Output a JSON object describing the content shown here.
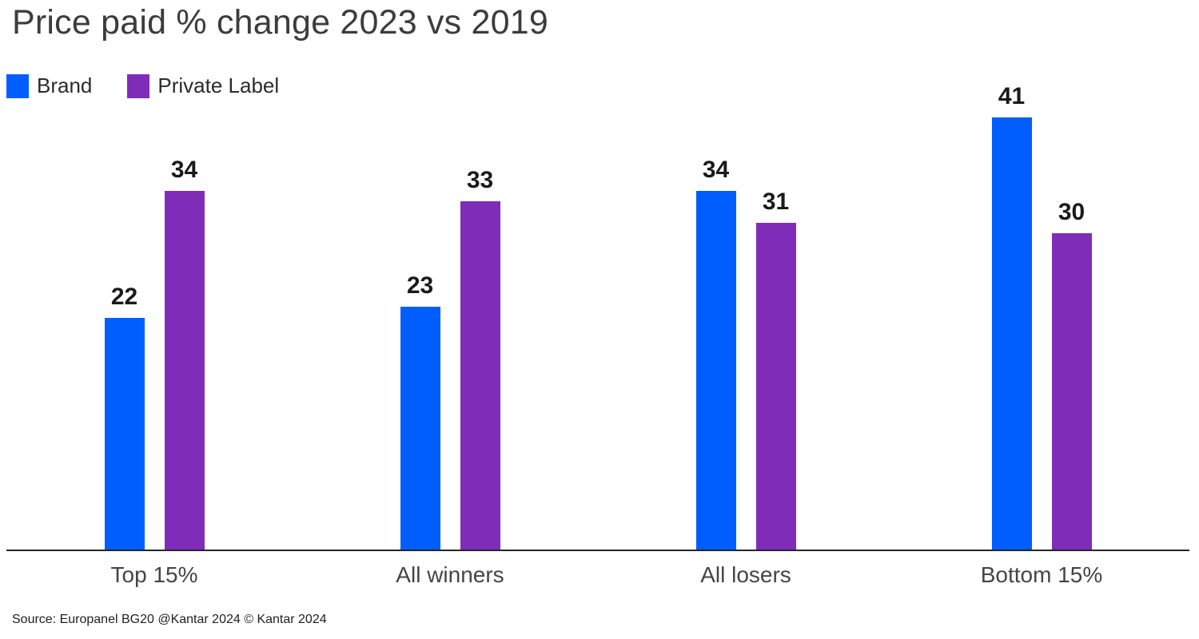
{
  "header": {
    "title": "Price paid % change 2023 vs 2019"
  },
  "chart_data": {
    "type": "bar",
    "title": "Price paid % change 2023 vs 2019",
    "categories": [
      "Top 15%",
      "All winners",
      "All losers",
      "Bottom 15%"
    ],
    "series": [
      {
        "name": "Brand",
        "color": "#005EFF",
        "values": [
          22,
          23,
          34,
          41
        ]
      },
      {
        "name": "Private Label",
        "color": "#7F2DB8",
        "values": [
          34,
          33,
          31,
          30
        ]
      }
    ],
    "ylim": [
      0,
      44.5
    ],
    "value_labels": true,
    "grid": false,
    "legend_position": "top-left",
    "axis_color": "#262626"
  },
  "footer": {
    "source": "Source: Europanel BG20 @Kantar 2024 © Kantar 2024"
  },
  "colors": {
    "title": "#3C3C3C",
    "value_label": "#1A1A1A",
    "category_label": "#454545",
    "axis": "#262626",
    "background": "#FFFFFF"
  }
}
